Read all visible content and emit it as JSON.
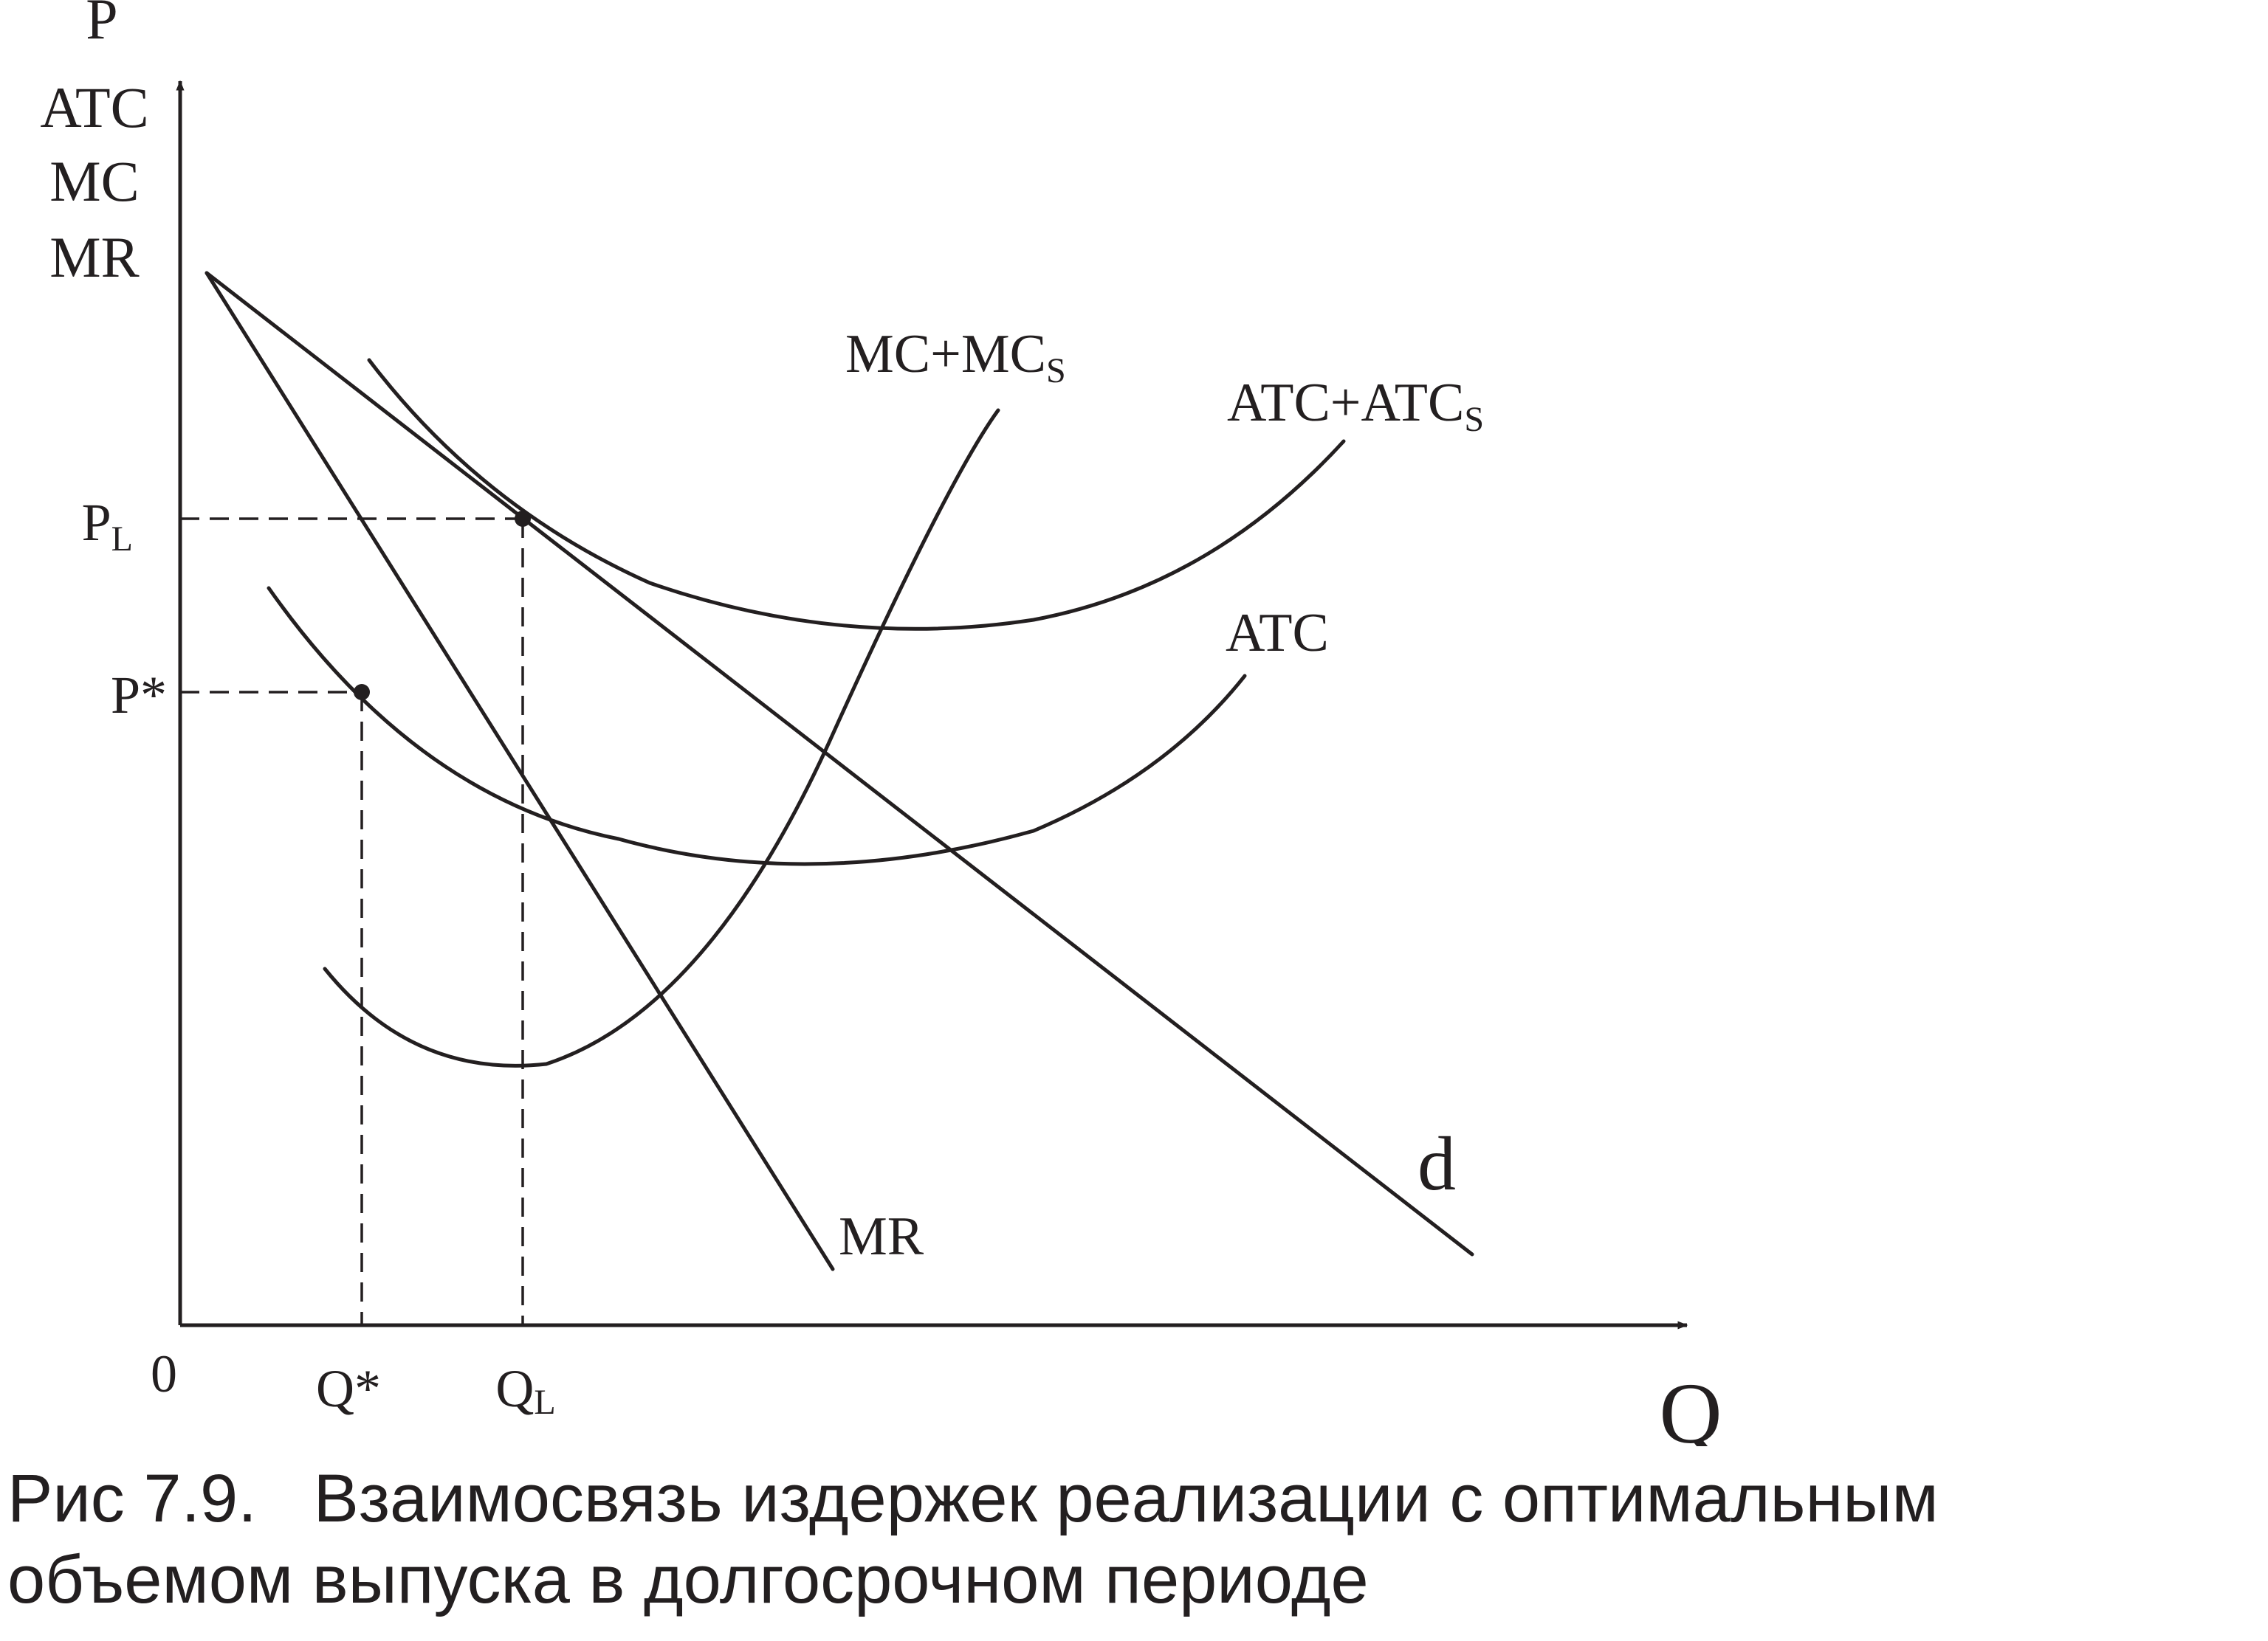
{
  "diagram": {
    "y_axis_labels": [
      "P",
      "ATC",
      "MC",
      "MR"
    ],
    "x_axis_label": "Q",
    "origin_label": "0",
    "price_levels": {
      "p_l": {
        "base": "P",
        "sub": "L"
      },
      "p_star": "P*"
    },
    "quantity_levels": {
      "q_star": "Q*",
      "q_l": {
        "base": "Q",
        "sub": "L"
      }
    },
    "curves": {
      "mc_ms": {
        "base": "MC+MC",
        "sub": "S"
      },
      "atc_ats": {
        "base": "ATC+ATC",
        "sub": "S"
      },
      "atc": "ATC",
      "demand": "d",
      "mr": "MR"
    }
  },
  "caption": {
    "line1": "Рис 7.9.   Взаимосвязь издержек реализации с оптимальным",
    "line2": "объемом выпуска в долгосрочном периоде"
  }
}
